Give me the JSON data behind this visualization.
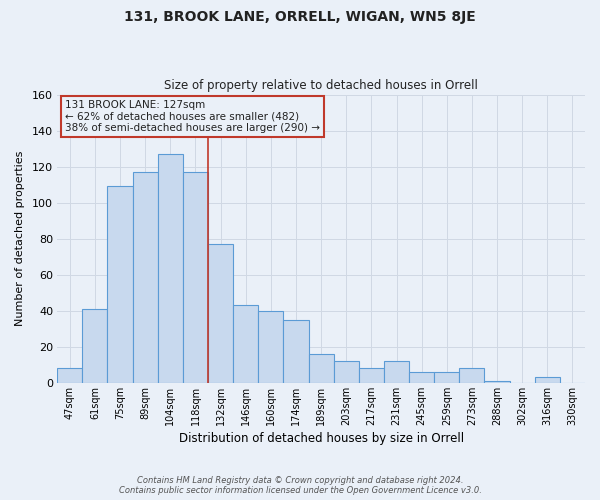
{
  "title": "131, BROOK LANE, ORRELL, WIGAN, WN5 8JE",
  "subtitle": "Size of property relative to detached houses in Orrell",
  "xlabel": "Distribution of detached houses by size in Orrell",
  "ylabel": "Number of detached properties",
  "bin_labels": [
    "47sqm",
    "61sqm",
    "75sqm",
    "89sqm",
    "104sqm",
    "118sqm",
    "132sqm",
    "146sqm",
    "160sqm",
    "174sqm",
    "189sqm",
    "203sqm",
    "217sqm",
    "231sqm",
    "245sqm",
    "259sqm",
    "273sqm",
    "288sqm",
    "302sqm",
    "316sqm",
    "330sqm"
  ],
  "bar_heights": [
    8,
    41,
    109,
    117,
    127,
    117,
    77,
    43,
    40,
    35,
    16,
    12,
    8,
    12,
    6,
    6,
    8,
    1,
    0,
    3,
    0
  ],
  "bar_color": "#c8d9ee",
  "bar_edge_color": "#5b9bd5",
  "grid_color": "#d0d8e4",
  "background_color": "#eaf0f8",
  "vline_color": "#c0392b",
  "vline_x_idx": 6,
  "annotation_text": "131 BROOK LANE: 127sqm\n← 62% of detached houses are smaller (482)\n38% of semi-detached houses are larger (290) →",
  "annotation_box_edge": "#c0392b",
  "ylim": [
    0,
    160
  ],
  "footer_line1": "Contains HM Land Registry data © Crown copyright and database right 2024.",
  "footer_line2": "Contains public sector information licensed under the Open Government Licence v3.0."
}
